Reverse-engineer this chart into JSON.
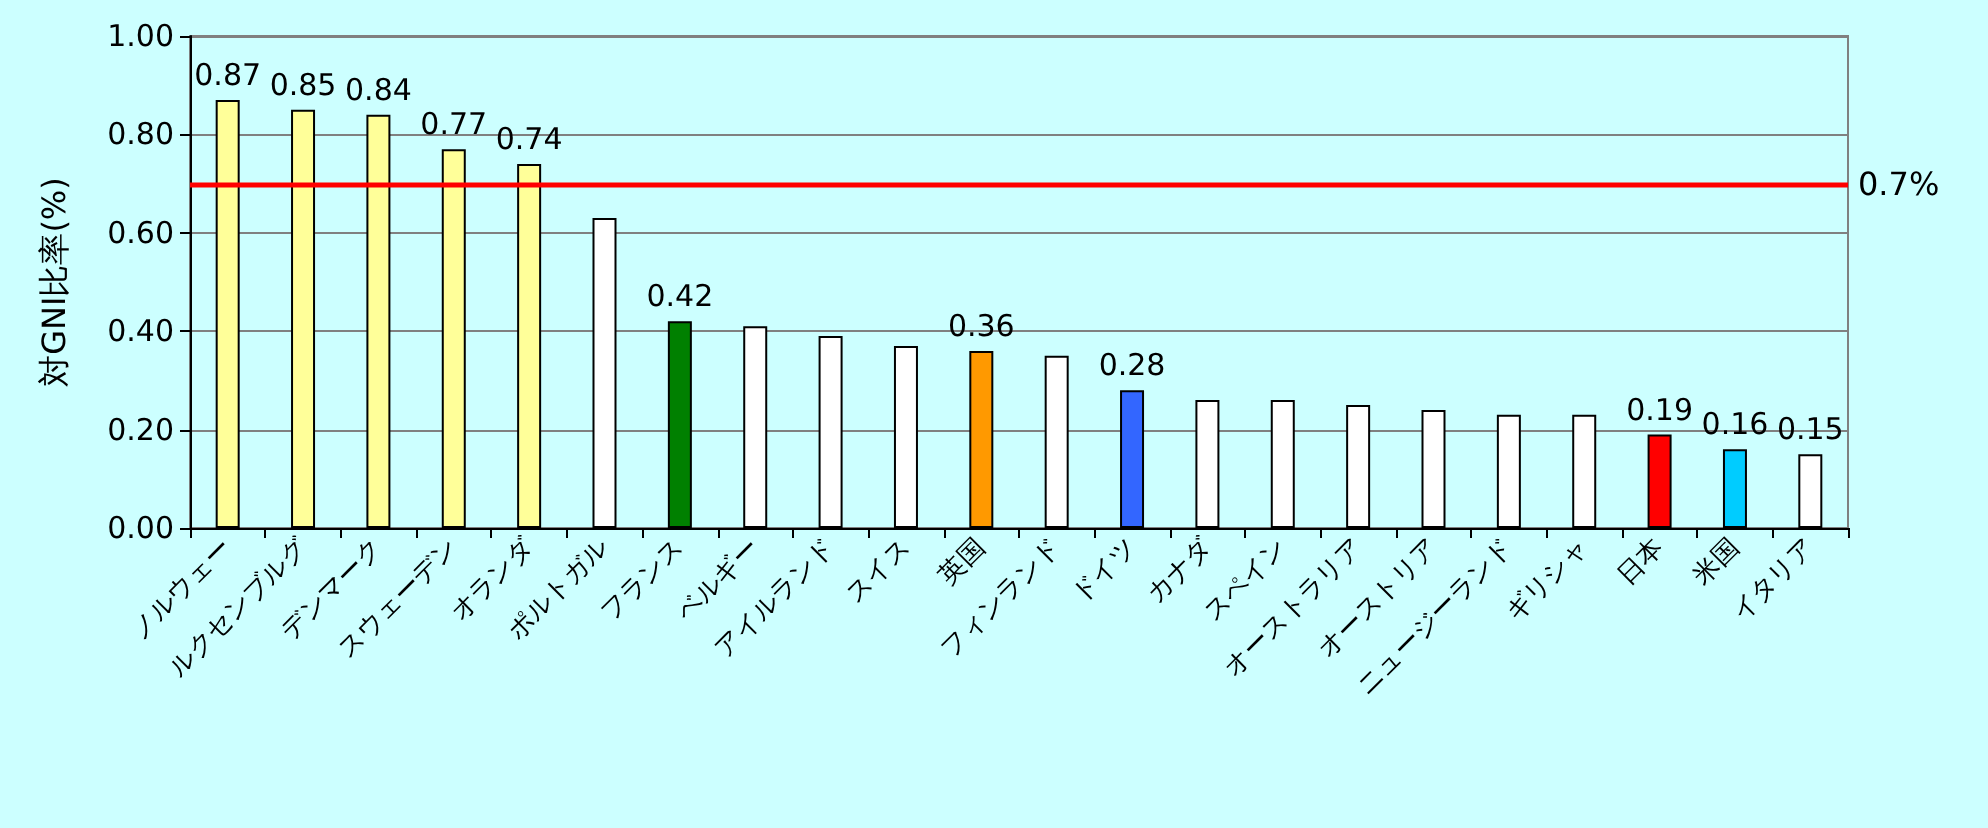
{
  "chart_data": {
    "type": "bar",
    "ylabel": "対GNI比率(%)",
    "categories": [
      "ノルウェー",
      "ルクセンブルグ",
      "デンマーク",
      "スウェーデン",
      "オランダ",
      "ポルトガル",
      "フランス",
      "ベルギー",
      "アイルランド",
      "スイス",
      "英国",
      "フィンランド",
      "ドイツ",
      "カナダ",
      "スペイン",
      "オーストラリア",
      "オーストリア",
      "ニュージーランド",
      "ギリシャ",
      "日本",
      "米国",
      "イタリア"
    ],
    "values": [
      0.87,
      0.85,
      0.84,
      0.77,
      0.74,
      0.63,
      0.42,
      0.41,
      0.39,
      0.37,
      0.36,
      0.35,
      0.28,
      0.26,
      0.26,
      0.25,
      0.24,
      0.23,
      0.23,
      0.19,
      0.16,
      0.15
    ],
    "value_labels": [
      "0.87",
      "0.85",
      "0.84",
      "0.77",
      "0.74",
      null,
      "0.42",
      null,
      null,
      null,
      "0.36",
      null,
      "0.28",
      null,
      null,
      null,
      null,
      null,
      null,
      "0.19",
      "0.16",
      "0.15"
    ],
    "colors": [
      "#ffff99",
      "#ffff99",
      "#ffff99",
      "#ffff99",
      "#ffff99",
      "#ffffff",
      "#008000",
      "#ffffff",
      "#ffffff",
      "#ffffff",
      "#ff9900",
      "#ffffff",
      "#3366ff",
      "#ffffff",
      "#ffffff",
      "#ffffff",
      "#ffffff",
      "#ffffff",
      "#ffffff",
      "#ff0000",
      "#00ccff",
      "#ffffff"
    ],
    "ylim": [
      0,
      1
    ],
    "yticks": [
      {
        "value": 0,
        "label": "0.00"
      },
      {
        "value": 0.2,
        "label": "0.20"
      },
      {
        "value": 0.4,
        "label": "0.40"
      },
      {
        "value": 0.6,
        "label": "0.60"
      },
      {
        "value": 0.8,
        "label": "0.80"
      },
      {
        "value": 1,
        "label": "1.00"
      }
    ],
    "grid": "y",
    "ref_lines": [
      {
        "axis": "y",
        "value": 0.7,
        "label": "0.7%",
        "color": "#ff0000"
      }
    ]
  }
}
